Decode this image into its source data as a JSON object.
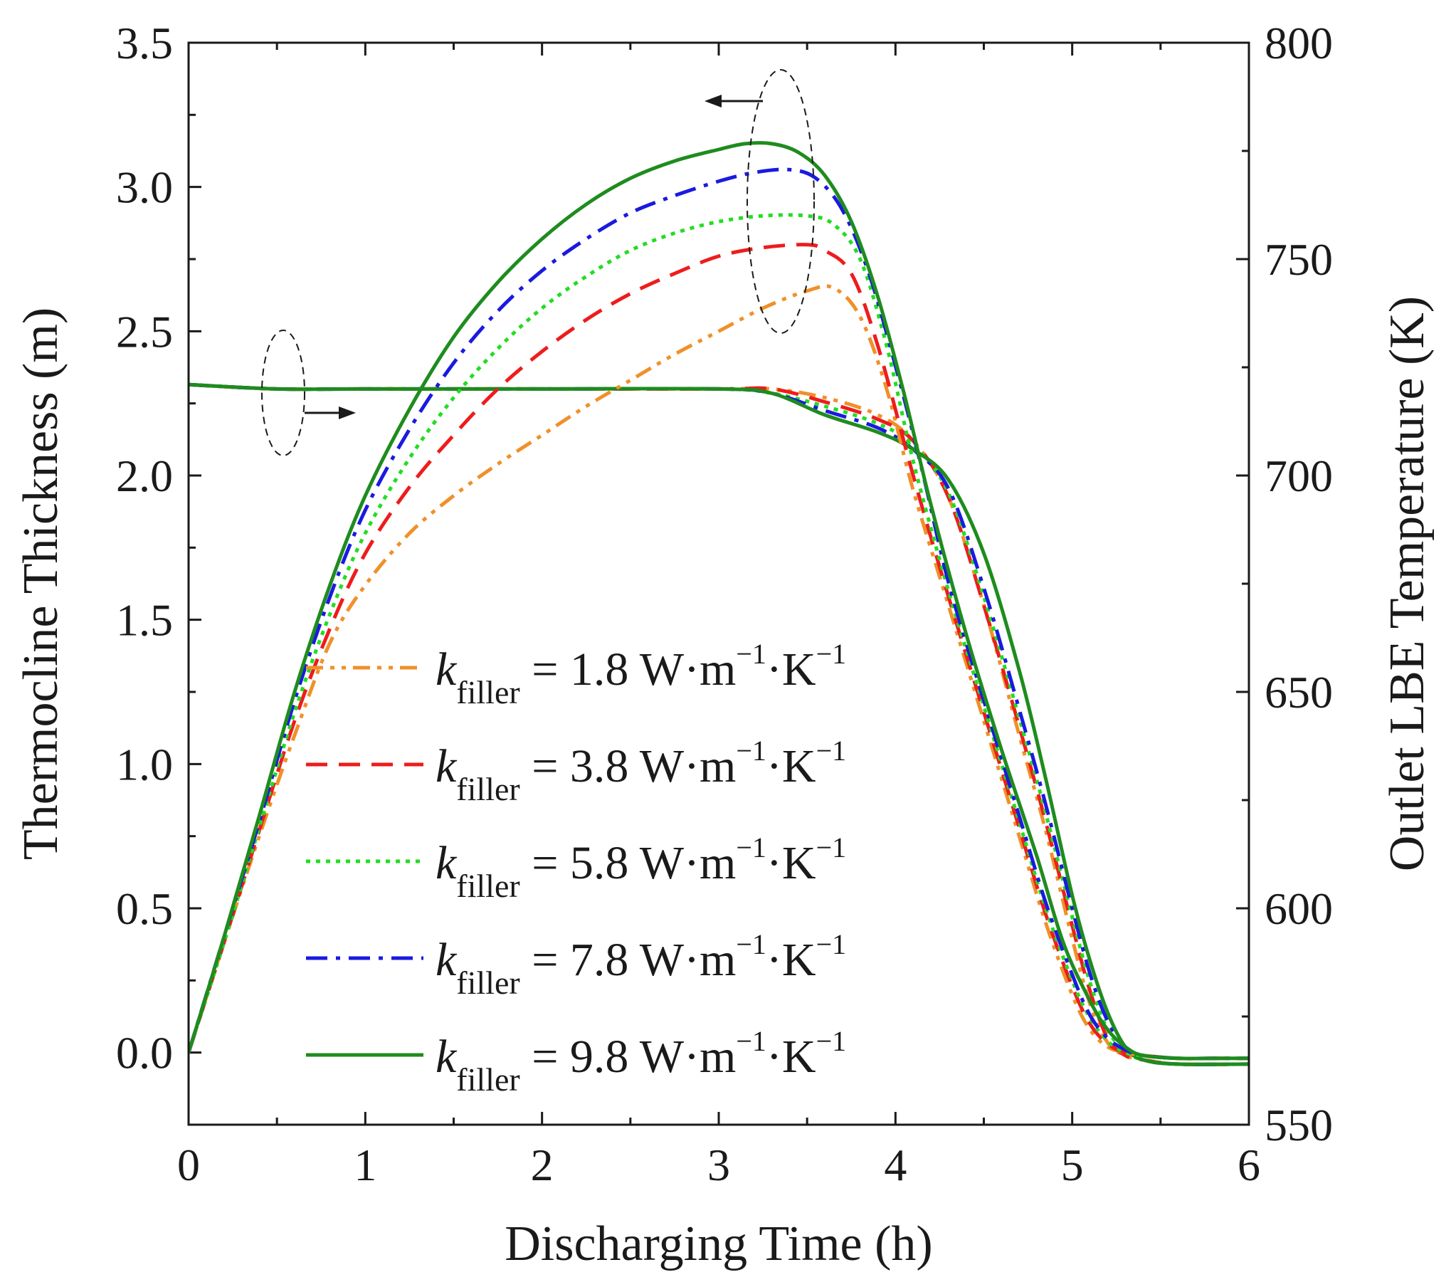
{
  "chart_data": {
    "type": "line",
    "title": "",
    "xlabel": "Discharging Time (h)",
    "ylabel_left": "Thermocline Thickness (m)",
    "ylabel_right": "Outlet LBE Temperature (K)",
    "xlim": [
      0,
      6
    ],
    "ylim_left": [
      -0.25,
      3.5
    ],
    "ylim_right": [
      550,
      800
    ],
    "x_ticks": [
      "0",
      "1",
      "2",
      "3",
      "4",
      "5",
      "6"
    ],
    "y_left_ticks": [
      "0.0",
      "0.5",
      "1.0",
      "1.5",
      "2.0",
      "2.5",
      "3.0",
      "3.5"
    ],
    "y_right_ticks": [
      "550",
      "600",
      "650",
      "700",
      "750",
      "800"
    ],
    "legend": [
      {
        "var": "k",
        "sub": "filler",
        "rest": " = 1.8 W·m",
        "unit_end": "·K",
        "sup": "−1",
        "color": "#f0902a",
        "dash": "dashdotdot"
      },
      {
        "var": "k",
        "sub": "filler",
        "rest": " = 3.8 W·m",
        "unit_end": "·K",
        "sup": "−1",
        "color": "#ee1c1c",
        "dash": "dash"
      },
      {
        "var": "k",
        "sub": "filler",
        "rest": " = 5.8 W·m",
        "unit_end": "·K",
        "sup": "−1",
        "color": "#22dd22",
        "dash": "dot"
      },
      {
        "var": "k",
        "sub": "filler",
        "rest": " = 7.8 W·m",
        "unit_end": "·K",
        "sup": "−1",
        "color": "#1a1ae0",
        "dash": "dashdot"
      },
      {
        "var": "k",
        "sub": "filler",
        "rest": " = 9.8 W·m",
        "unit_end": "·K",
        "sup": "−1",
        "color": "#1e8c1e",
        "dash": "solid"
      }
    ],
    "series_thickness": [
      {
        "name": "k_filler = 1.8",
        "axis": "left",
        "x": [
          0,
          0.2,
          0.4,
          0.6,
          0.8,
          1.0,
          1.25,
          1.5,
          1.75,
          2.0,
          2.25,
          2.5,
          2.75,
          3.0,
          3.25,
          3.5,
          3.65,
          3.8,
          3.95,
          4.1,
          4.3,
          4.5,
          4.7,
          4.85,
          5.0,
          5.1,
          5.2,
          5.3,
          5.4,
          5.6,
          5.8,
          6.0
        ],
        "y": [
          0.0,
          0.38,
          0.75,
          1.1,
          1.42,
          1.62,
          1.8,
          1.93,
          2.04,
          2.14,
          2.24,
          2.33,
          2.42,
          2.5,
          2.58,
          2.64,
          2.65,
          2.55,
          2.3,
          1.95,
          1.55,
          1.15,
          0.75,
          0.45,
          0.2,
          0.08,
          0.02,
          0.0,
          -0.01,
          -0.02,
          -0.02,
          -0.02
        ]
      },
      {
        "name": "k_filler = 3.8",
        "axis": "left",
        "x": [
          0,
          0.2,
          0.4,
          0.6,
          0.8,
          1.0,
          1.25,
          1.5,
          1.75,
          2.0,
          2.25,
          2.5,
          2.75,
          3.0,
          3.25,
          3.5,
          3.6,
          3.75,
          3.9,
          4.1,
          4.3,
          4.5,
          4.7,
          4.85,
          5.0,
          5.1,
          5.2,
          5.3,
          5.4,
          5.6,
          5.8,
          6.0
        ],
        "y": [
          0.0,
          0.38,
          0.77,
          1.15,
          1.47,
          1.73,
          1.96,
          2.14,
          2.3,
          2.43,
          2.54,
          2.63,
          2.7,
          2.76,
          2.79,
          2.8,
          2.78,
          2.7,
          2.45,
          2.0,
          1.58,
          1.18,
          0.78,
          0.48,
          0.23,
          0.1,
          0.03,
          0.0,
          -0.01,
          -0.02,
          -0.02,
          -0.02
        ]
      },
      {
        "name": "k_filler = 5.8",
        "axis": "left",
        "x": [
          0,
          0.2,
          0.4,
          0.6,
          0.8,
          1.0,
          1.25,
          1.5,
          1.75,
          2.0,
          2.25,
          2.5,
          2.75,
          3.0,
          3.25,
          3.5,
          3.65,
          3.8,
          3.95,
          4.1,
          4.3,
          4.5,
          4.7,
          4.85,
          5.0,
          5.1,
          5.2,
          5.3,
          5.4,
          5.6,
          5.8,
          6.0
        ],
        "y": [
          0.0,
          0.38,
          0.78,
          1.18,
          1.52,
          1.8,
          2.06,
          2.27,
          2.44,
          2.58,
          2.69,
          2.78,
          2.84,
          2.88,
          2.9,
          2.9,
          2.87,
          2.75,
          2.45,
          2.05,
          1.6,
          1.2,
          0.8,
          0.5,
          0.25,
          0.12,
          0.04,
          0.0,
          -0.01,
          -0.02,
          -0.02,
          -0.02
        ]
      },
      {
        "name": "k_filler = 7.8",
        "axis": "left",
        "x": [
          0,
          0.2,
          0.4,
          0.6,
          0.8,
          1.0,
          1.25,
          1.5,
          1.75,
          2.0,
          2.25,
          2.5,
          2.75,
          3.0,
          3.2,
          3.4,
          3.55,
          3.7,
          3.85,
          4.0,
          4.15,
          4.3,
          4.5,
          4.7,
          4.85,
          5.0,
          5.1,
          5.2,
          5.3,
          5.4,
          5.6,
          5.8,
          6.0
        ],
        "y": [
          0.0,
          0.4,
          0.8,
          1.22,
          1.58,
          1.88,
          2.16,
          2.39,
          2.57,
          2.71,
          2.82,
          2.91,
          2.97,
          3.02,
          3.05,
          3.06,
          3.03,
          2.92,
          2.7,
          2.38,
          2.02,
          1.63,
          1.22,
          0.82,
          0.52,
          0.27,
          0.13,
          0.05,
          0.01,
          -0.01,
          -0.02,
          -0.02,
          -0.02
        ]
      },
      {
        "name": "k_filler = 9.8",
        "axis": "left",
        "x": [
          0,
          0.2,
          0.4,
          0.6,
          0.8,
          1.0,
          1.25,
          1.5,
          1.75,
          2.0,
          2.25,
          2.5,
          2.75,
          3.0,
          3.15,
          3.3,
          3.45,
          3.6,
          3.75,
          3.9,
          4.05,
          4.2,
          4.4,
          4.6,
          4.8,
          4.95,
          5.1,
          5.2,
          5.3,
          5.4,
          5.6,
          5.8,
          6.0
        ],
        "y": [
          0.0,
          0.4,
          0.82,
          1.25,
          1.62,
          1.93,
          2.23,
          2.48,
          2.67,
          2.82,
          2.94,
          3.03,
          3.09,
          3.13,
          3.15,
          3.15,
          3.12,
          3.04,
          2.88,
          2.62,
          2.28,
          1.9,
          1.45,
          1.05,
          0.68,
          0.38,
          0.18,
          0.08,
          0.02,
          -0.01,
          -0.02,
          -0.02,
          -0.02
        ]
      }
    ],
    "series_temperature": [
      {
        "name": "k_filler = 1.8",
        "axis": "right",
        "x": [
          0,
          0.5,
          1.0,
          2.0,
          3.0,
          3.3,
          3.6,
          3.9,
          4.1,
          4.3,
          4.5,
          4.7,
          4.85,
          5.0,
          5.1,
          5.2,
          5.3,
          5.4,
          5.6,
          6.0
        ],
        "y": [
          721,
          720,
          720,
          720,
          720,
          720,
          718,
          714,
          708,
          695,
          670,
          640,
          618,
          593,
          578,
          569,
          566,
          565,
          564,
          564
        ]
      },
      {
        "name": "k_filler = 3.8",
        "axis": "right",
        "x": [
          0,
          0.5,
          1.0,
          2.0,
          3.0,
          3.3,
          3.6,
          3.9,
          4.1,
          4.3,
          4.5,
          4.7,
          4.85,
          5.0,
          5.1,
          5.2,
          5.3,
          5.4,
          5.6,
          6.0
        ],
        "y": [
          721,
          720,
          720,
          720,
          720,
          720,
          717,
          713,
          708,
          695,
          670,
          642,
          620,
          596,
          581,
          570,
          566,
          565,
          564,
          564
        ]
      },
      {
        "name": "k_filler = 5.8",
        "axis": "right",
        "x": [
          0,
          0.5,
          1.0,
          2.0,
          3.0,
          3.3,
          3.6,
          3.9,
          4.1,
          4.3,
          4.5,
          4.7,
          4.85,
          5.0,
          5.1,
          5.2,
          5.3,
          5.4,
          5.6,
          6.0
        ],
        "y": [
          721,
          720,
          720,
          720,
          720,
          719,
          716,
          712,
          707,
          696,
          672,
          644,
          622,
          598,
          583,
          572,
          567,
          565,
          564,
          564
        ]
      },
      {
        "name": "k_filler = 7.8",
        "axis": "right",
        "x": [
          0,
          0.5,
          1.0,
          2.0,
          3.0,
          3.3,
          3.6,
          3.9,
          4.1,
          4.3,
          4.5,
          4.7,
          4.85,
          5.0,
          5.1,
          5.2,
          5.3,
          5.4,
          5.6,
          6.0
        ],
        "y": [
          721,
          720,
          720,
          720,
          720,
          719,
          715,
          711,
          706,
          697,
          674,
          646,
          624,
          600,
          585,
          574,
          568,
          565,
          564,
          564
        ]
      },
      {
        "name": "k_filler = 9.8",
        "axis": "right",
        "x": [
          0,
          0.5,
          1.0,
          2.0,
          3.0,
          3.3,
          3.6,
          3.9,
          4.1,
          4.3,
          4.5,
          4.7,
          4.85,
          5.0,
          5.1,
          5.2,
          5.3,
          5.4,
          5.6,
          6.0
        ],
        "y": [
          721,
          720,
          720,
          720,
          720,
          719,
          714,
          710,
          706,
          699,
          682,
          655,
          630,
          603,
          588,
          576,
          568,
          565,
          564,
          564
        ]
      }
    ]
  }
}
